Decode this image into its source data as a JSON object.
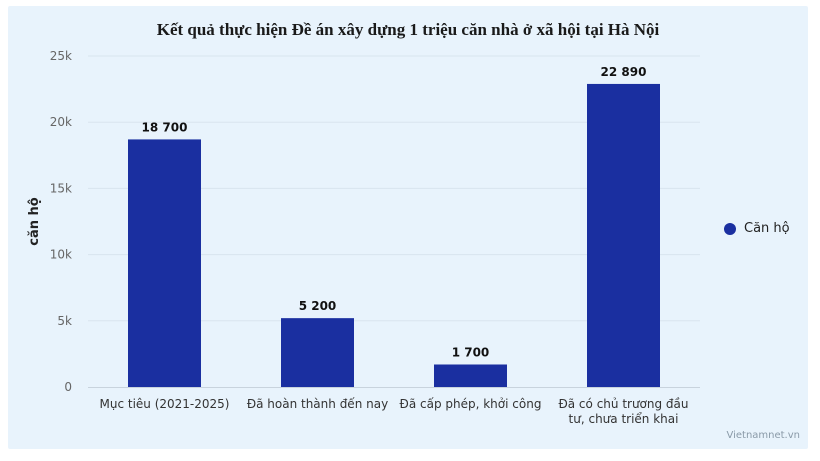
{
  "chart_data": {
    "type": "bar",
    "title": "Kết quả thực hiện Đề án xây dựng 1 triệu căn nhà ở xã hội tại Hà Nội",
    "ylabel": "căn hộ",
    "xlabel": "",
    "categories": [
      [
        "Mục tiêu (2021-2025)"
      ],
      [
        "Đã hoàn thành đến nay"
      ],
      [
        "Đã cấp phép, khởi công"
      ],
      [
        "Đã có chủ trương đầu",
        "tư, chưa triển khai"
      ]
    ],
    "series": [
      {
        "name": "Căn hộ",
        "values": [
          18700,
          5200,
          1700,
          22890
        ],
        "labels": [
          "18 700",
          "5 200",
          "1 700",
          "22 890"
        ],
        "color": "#1a2fa0"
      }
    ],
    "ylim": [
      0,
      25000
    ],
    "yticks": [
      0,
      5000,
      10000,
      15000,
      20000,
      25000
    ],
    "ytick_labels": [
      "0",
      "5k",
      "10k",
      "15k",
      "20k",
      "25k"
    ],
    "grid": true,
    "legend_position": "right"
  },
  "legend": {
    "label": "Căn hộ"
  },
  "credit": "Vietnamnet.vn"
}
